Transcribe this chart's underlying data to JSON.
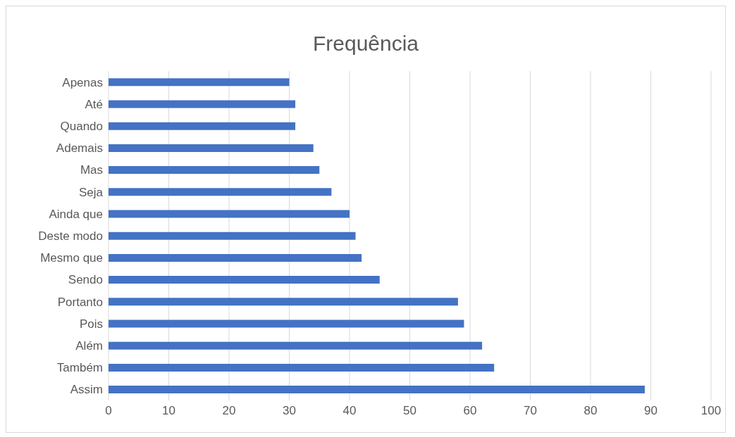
{
  "chart_data": {
    "type": "bar",
    "orientation": "horizontal",
    "title": "Frequência",
    "categories": [
      "Apenas",
      "Até",
      "Quando",
      "Ademais",
      "Mas",
      "Seja",
      "Ainda que",
      "Deste modo",
      "Mesmo que",
      "Sendo",
      "Portanto",
      "Pois",
      "Além",
      "Também",
      "Assim"
    ],
    "values": [
      30,
      31,
      31,
      34,
      35,
      37,
      40,
      41,
      42,
      45,
      58,
      59,
      62,
      64,
      89
    ],
    "color": "#4472c4",
    "xlim": [
      0,
      100
    ],
    "xticks": [
      0,
      10,
      20,
      30,
      40,
      50,
      60,
      70,
      80,
      90,
      100
    ],
    "grid": "x",
    "legend": false
  }
}
